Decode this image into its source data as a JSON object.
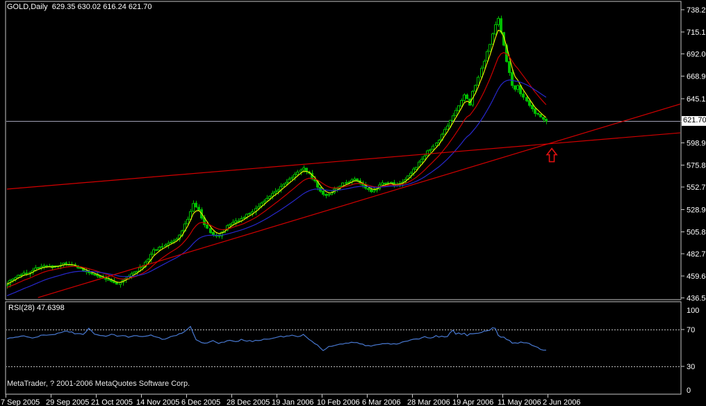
{
  "header": {
    "title": "GOLD,Daily  629.35 630.02 616.24 621.70"
  },
  "footer": {
    "copyright": "MetaTrader, ? 2001-2006 MetaQuotes Software Corp."
  },
  "axes": {
    "current_price_label": "621.70"
  },
  "rsi": {
    "label": "RSI(28) 47.6398"
  },
  "colors": {
    "background": "#000000",
    "border": "#C8C8C8",
    "candle_green": "#00BE00",
    "ma_fast_yellow": "#E8E800",
    "ma_mid_red": "#CC0000",
    "ma_slow_blue": "#2828CD",
    "trendline_red": "#D40000",
    "arrow_red": "#E01010",
    "current_price_line": "#A0A0B4",
    "rsi_line": "#4878D0",
    "rsi_guide_dashed": "#C0C0C0",
    "axis_text": "#FFFFFF"
  },
  "chart_data": {
    "type": "candlestick",
    "title": "GOLD,Daily  629.35 630.02 616.24 621.70",
    "symbol": "GOLD",
    "timeframe": "Daily",
    "quote": {
      "open": 629.35,
      "high": 630.02,
      "low": 616.24,
      "close": 621.7
    },
    "current_price": 621.7,
    "y_range": [
      436.5,
      738.2
    ],
    "y_tick_labels": [
      "738.20",
      "715.10",
      "692.00",
      "668.90",
      "645.10",
      "598.90",
      "575.80",
      "552.70",
      "528.90",
      "505.80",
      "482.70",
      "459.60",
      "436.50"
    ],
    "x_tick_labels": [
      "7 Sep 2005",
      "29 Sep 2005",
      "21 Oct 2005",
      "14 Nov 2005",
      "6 Dec 2005",
      "28 Dec 2005",
      "19 Jan 2006",
      "10 Feb 2006",
      "6 Mar 2006",
      "28 Mar 2006",
      "19 Apr 2006",
      "11 May 2006",
      "2 Jun 2006"
    ],
    "bar_count": 192,
    "bars_per_tick": 16,
    "close_anchors": [
      [
        0,
        452
      ],
      [
        4,
        460
      ],
      [
        8,
        464
      ],
      [
        12,
        470
      ],
      [
        16,
        469
      ],
      [
        20,
        472
      ],
      [
        24,
        470
      ],
      [
        27,
        466
      ],
      [
        30,
        461
      ],
      [
        33,
        458
      ],
      [
        36,
        455
      ],
      [
        39,
        452
      ],
      [
        42,
        456
      ],
      [
        45,
        463
      ],
      [
        48,
        470
      ],
      [
        50,
        477
      ],
      [
        52,
        486
      ],
      [
        54,
        490
      ],
      [
        56,
        492
      ],
      [
        58,
        494
      ],
      [
        60,
        498
      ],
      [
        62,
        507
      ],
      [
        64,
        519
      ],
      [
        66,
        536
      ],
      [
        68,
        528
      ],
      [
        70,
        514
      ],
      [
        72,
        505
      ],
      [
        74,
        501
      ],
      [
        76,
        505
      ],
      [
        78,
        512
      ],
      [
        80,
        515
      ],
      [
        82,
        518
      ],
      [
        84,
        521
      ],
      [
        86,
        526
      ],
      [
        88,
        530
      ],
      [
        90,
        535
      ],
      [
        92,
        540
      ],
      [
        94,
        546
      ],
      [
        96,
        550
      ],
      [
        98,
        556
      ],
      [
        100,
        561
      ],
      [
        102,
        566
      ],
      [
        104,
        571
      ],
      [
        105,
        573
      ],
      [
        107,
        566
      ],
      [
        109,
        558
      ],
      [
        111,
        549
      ],
      [
        113,
        543
      ],
      [
        115,
        547
      ],
      [
        117,
        552
      ],
      [
        119,
        556
      ],
      [
        121,
        559
      ],
      [
        123,
        562
      ],
      [
        125,
        557
      ],
      [
        127,
        551
      ],
      [
        129,
        548
      ],
      [
        131,
        552
      ],
      [
        133,
        556
      ],
      [
        135,
        558
      ],
      [
        137,
        555
      ],
      [
        139,
        557
      ],
      [
        141,
        561
      ],
      [
        143,
        568
      ],
      [
        145,
        574
      ],
      [
        147,
        582
      ],
      [
        149,
        590
      ],
      [
        151,
        596
      ],
      [
        153,
        602
      ],
      [
        155,
        612
      ],
      [
        157,
        622
      ],
      [
        159,
        633
      ],
      [
        161,
        644
      ],
      [
        162,
        650
      ],
      [
        163,
        645
      ],
      [
        164,
        638
      ],
      [
        165,
        652
      ],
      [
        166,
        660
      ],
      [
        167,
        668
      ],
      [
        168,
        676
      ],
      [
        169,
        684
      ],
      [
        170,
        694
      ],
      [
        171,
        703
      ],
      [
        172,
        712
      ],
      [
        173,
        722
      ],
      [
        174,
        728
      ],
      [
        175,
        715
      ],
      [
        176,
        700
      ],
      [
        177,
        685
      ],
      [
        178,
        672
      ],
      [
        179,
        660
      ],
      [
        180,
        655
      ],
      [
        181,
        658
      ],
      [
        182,
        650
      ],
      [
        183,
        646
      ],
      [
        184,
        643
      ],
      [
        185,
        638
      ],
      [
        186,
        634
      ],
      [
        187,
        630
      ],
      [
        188,
        629
      ],
      [
        189,
        626
      ],
      [
        190,
        624
      ],
      [
        191,
        621.7
      ]
    ],
    "moving_averages": [
      {
        "name": "fast-ma",
        "color": "#E8E800",
        "period": 4,
        "seed": 451
      },
      {
        "name": "mid-ma",
        "color": "#CC0000",
        "period": 12,
        "seed": 447
      },
      {
        "name": "slow-ma",
        "color": "#2828CD",
        "period": 26,
        "seed": 438
      }
    ],
    "trendlines": [
      {
        "name": "lower-support-trendline",
        "color": "#D40000",
        "from": {
          "bar": 11,
          "price": 437.0
        },
        "to": {
          "bar": 239,
          "price": 640.0
        }
      },
      {
        "name": "upper-resistance-trendline",
        "color": "#D40000",
        "from": {
          "bar": 0,
          "price": 550.5
        },
        "to": {
          "bar": 239,
          "price": 609.5
        }
      }
    ],
    "annotation_arrow": {
      "bar": 193,
      "price": 593,
      "direction": "up",
      "color": "#E01010"
    },
    "rsi_panel": {
      "label": "RSI(28) 47.6398",
      "period": 28,
      "value": 47.6398,
      "range": [
        0,
        100
      ],
      "guide_levels": [
        70,
        30
      ],
      "scale_labels": [
        "100",
        "70",
        "30",
        "0"
      ],
      "anchors": [
        [
          0,
          60
        ],
        [
          3,
          62
        ],
        [
          6,
          63
        ],
        [
          9,
          61
        ],
        [
          12,
          63
        ],
        [
          15,
          64
        ],
        [
          18,
          66
        ],
        [
          21,
          68
        ],
        [
          24,
          66
        ],
        [
          27,
          64
        ],
        [
          29,
          71
        ],
        [
          31,
          65
        ],
        [
          33,
          63
        ],
        [
          35,
          62
        ],
        [
          37,
          65
        ],
        [
          39,
          63
        ],
        [
          41,
          64
        ],
        [
          43,
          62
        ],
        [
          45,
          64
        ],
        [
          47,
          62
        ],
        [
          49,
          63
        ],
        [
          51,
          64
        ],
        [
          53,
          62
        ],
        [
          55,
          59
        ],
        [
          58,
          62
        ],
        [
          60,
          64
        ],
        [
          63,
          68
        ],
        [
          65,
          73
        ],
        [
          67,
          59
        ],
        [
          69,
          56
        ],
        [
          71,
          55
        ],
        [
          73,
          58
        ],
        [
          75,
          55
        ],
        [
          77,
          57
        ],
        [
          79,
          58
        ],
        [
          81,
          57
        ],
        [
          83,
          59
        ],
        [
          85,
          58
        ],
        [
          87,
          57
        ],
        [
          89,
          58
        ],
        [
          91,
          59
        ],
        [
          93,
          60
        ],
        [
          95,
          61
        ],
        [
          97,
          62
        ],
        [
          99,
          63
        ],
        [
          101,
          64
        ],
        [
          103,
          63
        ],
        [
          105,
          64
        ],
        [
          107,
          60
        ],
        [
          109,
          55
        ],
        [
          111,
          50
        ],
        [
          112,
          47
        ],
        [
          114,
          51
        ],
        [
          116,
          53
        ],
        [
          118,
          54
        ],
        [
          120,
          55
        ],
        [
          122,
          56
        ],
        [
          124,
          56
        ],
        [
          126,
          54
        ],
        [
          128,
          52
        ],
        [
          130,
          53
        ],
        [
          132,
          54
        ],
        [
          134,
          55
        ],
        [
          136,
          54
        ],
        [
          138,
          54
        ],
        [
          140,
          56
        ],
        [
          142,
          58
        ],
        [
          144,
          60
        ],
        [
          146,
          59
        ],
        [
          148,
          62
        ],
        [
          150,
          61
        ],
        [
          152,
          63
        ],
        [
          154,
          62
        ],
        [
          156,
          63
        ],
        [
          158,
          69
        ],
        [
          159,
          65
        ],
        [
          160,
          67
        ],
        [
          161,
          64
        ],
        [
          162,
          66
        ],
        [
          163,
          63
        ],
        [
          164,
          65
        ],
        [
          166,
          66
        ],
        [
          168,
          67
        ],
        [
          170,
          68
        ],
        [
          172,
          72
        ],
        [
          173,
          71
        ],
        [
          174,
          64
        ],
        [
          175,
          62
        ],
        [
          176,
          62
        ],
        [
          177,
          60
        ],
        [
          178,
          58
        ],
        [
          179,
          56
        ],
        [
          180,
          55
        ],
        [
          181,
          55
        ],
        [
          182,
          56
        ],
        [
          183,
          55
        ],
        [
          184,
          55
        ],
        [
          185,
          54
        ],
        [
          186,
          53
        ],
        [
          187,
          51
        ],
        [
          188,
          50
        ],
        [
          189,
          49
        ],
        [
          190,
          48
        ],
        [
          191,
          47.6
        ]
      ]
    }
  }
}
